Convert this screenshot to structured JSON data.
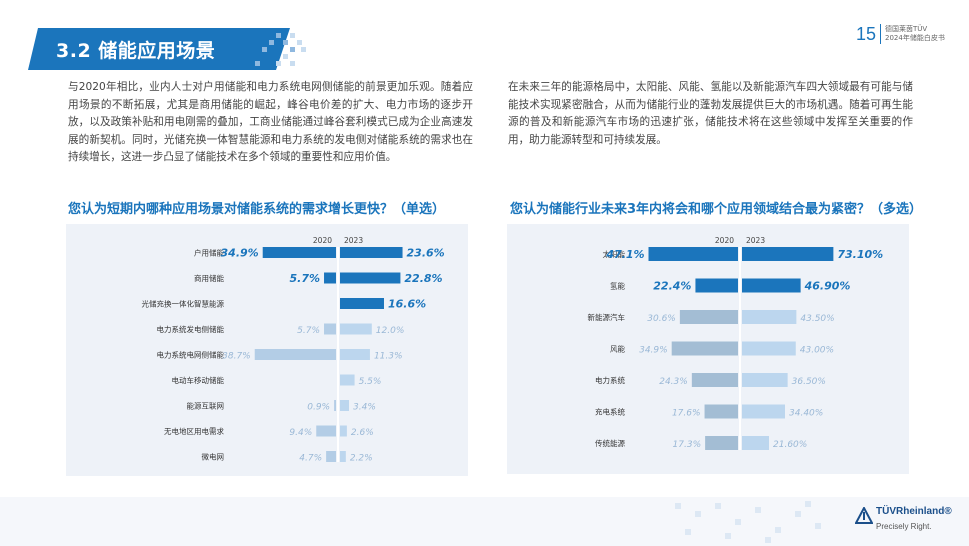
{
  "header": {
    "section_title": "3.2 储能应用场景",
    "page_number": "15",
    "header_line1": "德国莱茵TÜV",
    "header_line2": "2024年储能白皮书"
  },
  "paragraphs": {
    "left": "与2020年相比，业内人士对户用储能和电力系统电网侧储能的前景更加乐观。随着应用场景的不断拓展，尤其是商用储能的崛起，峰谷电价差的扩大、电力市场的逐步开放，以及政策补贴和用电刚需的叠加，工商业储能通过峰谷套利模式已成为企业高速发展的新契机。同时，光储充换一体智慧能源和电力系统的发电侧对储能系统的需求也在持续增长，这进一步凸显了储能技术在多个领域的重要性和应用价值。",
    "right": "在未来三年的能源格局中，太阳能、风能、氢能以及新能源汽车四大领域最有可能与储能技术实现紧密融合，从而为储能行业的蓬勃发展提供巨大的市场机遇。随着可再生能源的普及和新能源汽车市场的迅速扩张，储能技术将在这些领域中发挥至关重要的作用，助力能源转型和可持续发展。"
  },
  "colors": {
    "brand": "#1b75bc",
    "dark_bar": "#1b75bc",
    "light_bar_2020": "#b3cde6",
    "light_bar_2023": "#bcd6ee",
    "mid_bar_right_2020": "#a3bdd4",
    "mid_bar_right_2023": "#bcd6ee",
    "highlight_label": "#1b75bc",
    "muted_label": "#9ab8d6",
    "panel_bg": "#eef2f8"
  },
  "chart_data": [
    {
      "type": "bar",
      "orientation": "horizontal-butterfly",
      "title": "您认为短期内哪种应用场景对储能系统的需求增长更快？（单选）",
      "categories": [
        "户用储能",
        "商用储能",
        "光储充换一体化智慧能源",
        "电力系统发电侧储能",
        "电力系统电网侧储能",
        "电动车移动储能",
        "能源互联网",
        "无电地区用电需求",
        "微电网"
      ],
      "series": [
        {
          "name": "2020",
          "values": [
            34.9,
            5.7,
            null,
            5.7,
            38.7,
            null,
            0.9,
            9.4,
            4.7
          ],
          "labels": [
            "34.9%",
            "5.7%",
            "",
            "5.7%",
            "38.7%",
            "",
            "0.9%",
            "9.4%",
            "4.7%"
          ],
          "highlight": [
            true,
            true,
            false,
            false,
            false,
            false,
            false,
            false,
            false
          ]
        },
        {
          "name": "2023",
          "values": [
            23.6,
            22.8,
            16.6,
            12.0,
            11.3,
            5.5,
            3.4,
            2.6,
            2.2
          ],
          "labels": [
            "23.6%",
            "22.8%",
            "16.6%",
            "12.0%",
            "11.3%",
            "5.5%",
            "3.4%",
            "2.6%",
            "2.2%"
          ],
          "highlight": [
            true,
            true,
            true,
            false,
            false,
            false,
            false,
            false,
            false
          ]
        }
      ],
      "unit": "%"
    },
    {
      "type": "bar",
      "orientation": "horizontal-butterfly",
      "title": "您认为储能行业未来3年内将会和哪个应用领域结合最为紧密？（多选）",
      "categories": [
        "太阳能",
        "氢能",
        "新能源汽车",
        "风能",
        "电力系统",
        "充电系统",
        "传统能源"
      ],
      "series": [
        {
          "name": "2020",
          "values": [
            47.1,
            22.4,
            30.6,
            34.9,
            24.3,
            17.6,
            17.3
          ],
          "labels": [
            "47.1%",
            "22.4%",
            "30.6%",
            "34.9%",
            "24.3%",
            "17.6%",
            "17.3%"
          ],
          "highlight": [
            true,
            true,
            false,
            false,
            false,
            false,
            false
          ]
        },
        {
          "name": "2023",
          "values": [
            73.1,
            46.9,
            43.5,
            43.0,
            36.5,
            34.4,
            21.6
          ],
          "labels": [
            "73.10%",
            "46.90%",
            "43.50%",
            "43.00%",
            "36.50%",
            "34.40%",
            "21.60%"
          ],
          "highlight": [
            true,
            true,
            false,
            false,
            false,
            false,
            false
          ]
        }
      ],
      "unit": "%"
    }
  ],
  "footer": {
    "brand_name": "TÜVRheinland®",
    "tagline": "Precisely Right."
  }
}
